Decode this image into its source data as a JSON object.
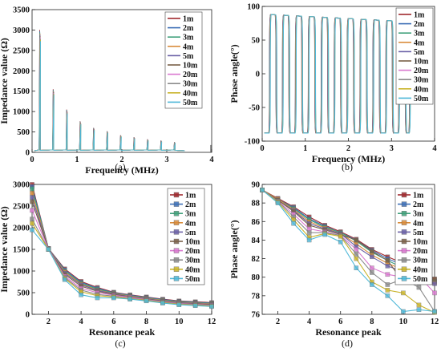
{
  "series_names": [
    "1m",
    "2m",
    "3m",
    "4m",
    "5m",
    "10m",
    "20m",
    "30m",
    "40m",
    "50m"
  ],
  "series_colors": [
    "#a0282d",
    "#3d6fb6",
    "#3fa07a",
    "#d98b3a",
    "#6a60a6",
    "#7a6048",
    "#d978cf",
    "#8a8a8a",
    "#c9b32a",
    "#4fb8d8"
  ],
  "panels": [
    {
      "label": "(a)"
    },
    {
      "label": "(b)"
    },
    {
      "label": "(c)"
    },
    {
      "label": "(d)"
    }
  ],
  "chart_data": [
    {
      "type": "line",
      "xlabel": "Frequency (MHz)",
      "ylabel": "Impedance value (Ω)",
      "xlim": [
        0,
        4
      ],
      "ylim": [
        0,
        3500
      ],
      "xticks": [
        0,
        1,
        2,
        3,
        4
      ],
      "yticks": [
        0,
        500,
        1000,
        1500,
        2000,
        2500,
        3000,
        3500
      ],
      "resonance_freqs_mhz": [
        0.17,
        0.47,
        0.77,
        1.07,
        1.37,
        1.67,
        1.97,
        2.27,
        2.57,
        2.87,
        3.17
      ],
      "peak_values": [
        3000,
        1550,
        1050,
        760,
        600,
        520,
        420,
        370,
        320,
        290,
        250
      ],
      "baseline": 40,
      "legend": "top-right"
    },
    {
      "type": "line",
      "xlabel": "Frequency (MHz)",
      "ylabel": "Phase angle(°)",
      "xlim": [
        0,
        4
      ],
      "ylim": [
        -100,
        100
      ],
      "xticks": [
        0,
        1,
        2,
        3,
        4
      ],
      "yticks": [
        -100,
        -50,
        0,
        50,
        100
      ],
      "switch_freqs_mhz": [
        0.17,
        0.32,
        0.47,
        0.62,
        0.77,
        0.92,
        1.07,
        1.22,
        1.37,
        1.52,
        1.67,
        1.82,
        1.97,
        2.12,
        2.27,
        2.42,
        2.57,
        2.72,
        2.87,
        3.02,
        3.17,
        3.32,
        3.42
      ],
      "high_value": 88,
      "low_value": -88,
      "legend": "top-right"
    },
    {
      "type": "line",
      "xlabel": "Resonance peak",
      "ylabel": "Impedance value (Ω)",
      "xlim": [
        1,
        12
      ],
      "ylim": [
        0,
        3000
      ],
      "xticks": [
        2,
        4,
        6,
        8,
        10,
        12
      ],
      "yticks": [
        0,
        500,
        1000,
        1500,
        2000,
        2500,
        3000
      ],
      "x": [
        1,
        2,
        3,
        4,
        5,
        6,
        7,
        8,
        9,
        10,
        11,
        12
      ],
      "series": [
        {
          "name": "1m",
          "values": [
            3000,
            1520,
            1050,
            760,
            620,
            510,
            450,
            400,
            350,
            310,
            290,
            270
          ]
        },
        {
          "name": "2m",
          "values": [
            2950,
            1520,
            1030,
            740,
            600,
            500,
            440,
            390,
            340,
            300,
            280,
            260
          ]
        },
        {
          "name": "3m",
          "values": [
            2900,
            1520,
            1000,
            720,
            580,
            490,
            430,
            380,
            330,
            290,
            270,
            250
          ]
        },
        {
          "name": "4m",
          "values": [
            2800,
            1520,
            980,
            700,
            560,
            480,
            420,
            370,
            320,
            280,
            260,
            240
          ]
        },
        {
          "name": "5m",
          "values": [
            2700,
            1520,
            950,
            680,
            550,
            470,
            410,
            360,
            310,
            270,
            250,
            230
          ]
        },
        {
          "name": "10m",
          "values": [
            2600,
            1510,
            920,
            650,
            530,
            460,
            400,
            350,
            300,
            260,
            240,
            220
          ]
        },
        {
          "name": "20m",
          "values": [
            2400,
            1510,
            880,
            600,
            500,
            440,
            390,
            340,
            290,
            250,
            230,
            210
          ]
        },
        {
          "name": "30m",
          "values": [
            2200,
            1500,
            850,
            560,
            460,
            420,
            370,
            330,
            280,
            240,
            220,
            200
          ]
        },
        {
          "name": "40m",
          "values": [
            2100,
            1500,
            830,
            520,
            430,
            400,
            360,
            320,
            270,
            230,
            210,
            190
          ]
        },
        {
          "name": "50m",
          "values": [
            1950,
            1500,
            800,
            450,
            380,
            380,
            350,
            310,
            260,
            220,
            200,
            180
          ]
        }
      ],
      "legend": "top-right"
    },
    {
      "type": "line",
      "xlabel": "Resonance peak",
      "ylabel": "Phase angle(°)",
      "xlim": [
        1,
        12
      ],
      "ylim": [
        76,
        90
      ],
      "xticks": [
        2,
        4,
        6,
        8,
        10,
        12
      ],
      "yticks": [
        76,
        78,
        80,
        82,
        84,
        86,
        88,
        90
      ],
      "x": [
        1,
        2,
        3,
        4,
        5,
        6,
        7,
        8,
        9,
        10,
        11,
        12
      ],
      "series": [
        {
          "name": "1m",
          "values": [
            89.4,
            88.5,
            87.6,
            86.5,
            85.6,
            84.9,
            84.1,
            83.0,
            82.2,
            81.5,
            80.8,
            79.8
          ]
        },
        {
          "name": "2m",
          "values": [
            89.4,
            88.4,
            87.5,
            86.3,
            85.5,
            84.8,
            84.0,
            82.9,
            82.0,
            81.3,
            80.6,
            79.6
          ]
        },
        {
          "name": "3m",
          "values": [
            89.4,
            88.4,
            87.4,
            86.2,
            85.4,
            84.8,
            83.9,
            82.7,
            81.8,
            81.0,
            80.4,
            79.5
          ]
        },
        {
          "name": "4m",
          "values": [
            89.4,
            88.4,
            87.3,
            86.0,
            85.3,
            84.7,
            83.6,
            82.4,
            81.5,
            80.8,
            80.2,
            79.4
          ]
        },
        {
          "name": "5m",
          "values": [
            89.4,
            88.3,
            87.2,
            85.8,
            85.2,
            84.7,
            83.3,
            82.2,
            81.2,
            80.6,
            80.0,
            79.3
          ]
        },
        {
          "name": "10m",
          "values": [
            89.4,
            88.3,
            87.1,
            85.6,
            85.1,
            84.6,
            84.0,
            82.8,
            81.8,
            79.5,
            79.4,
            79.8
          ]
        },
        {
          "name": "20m",
          "values": [
            89.4,
            88.2,
            86.8,
            85.2,
            84.9,
            84.5,
            83.0,
            81.0,
            80.3,
            80.0,
            80.1,
            78.3
          ]
        },
        {
          "name": "30m",
          "values": [
            89.4,
            88.2,
            86.5,
            84.8,
            84.8,
            84.5,
            82.5,
            80.5,
            79.2,
            79.8,
            78.9,
            76.3
          ]
        },
        {
          "name": "40m",
          "values": [
            89.4,
            88.1,
            86.2,
            84.3,
            84.7,
            84.4,
            82.0,
            79.5,
            78.6,
            78.3,
            77.0,
            76.2
          ]
        },
        {
          "name": "50m",
          "values": [
            89.4,
            88.0,
            85.8,
            84.0,
            84.6,
            83.8,
            81.0,
            79.2,
            78.0,
            76.3,
            76.5,
            76.3
          ]
        }
      ],
      "legend": "top-right"
    }
  ]
}
